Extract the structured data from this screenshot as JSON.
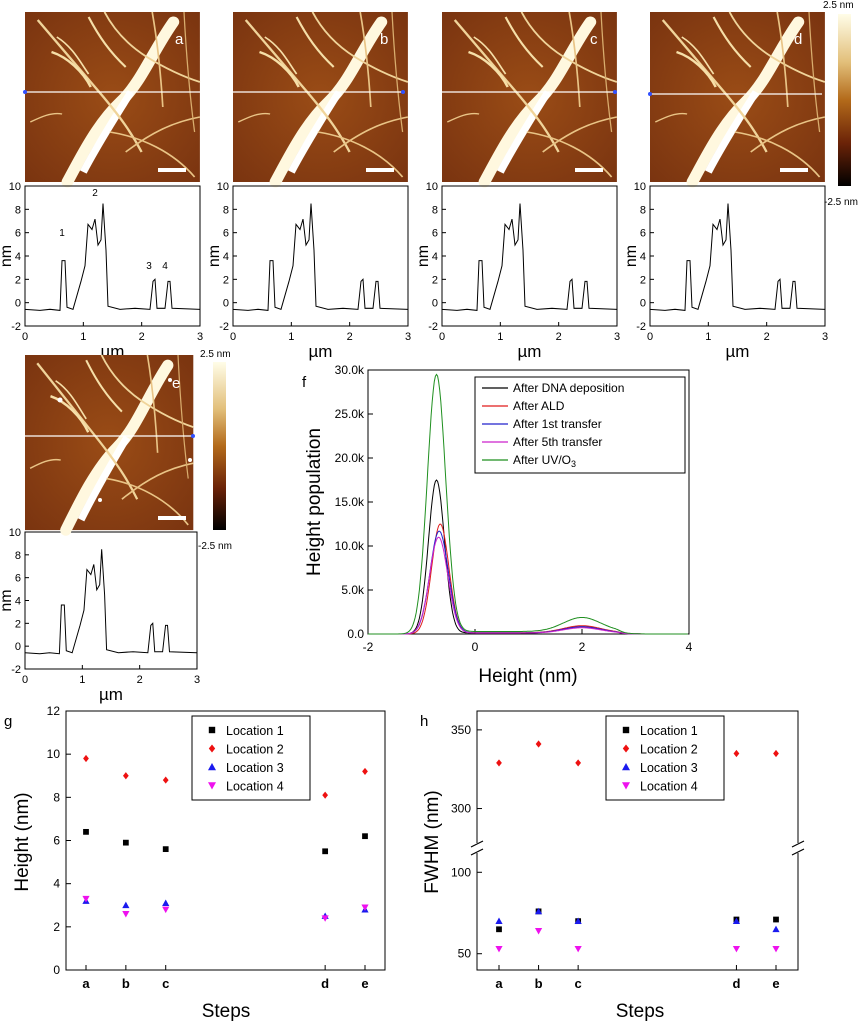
{
  "afm": {
    "panel_letters": [
      "a",
      "b",
      "c",
      "d",
      "e"
    ],
    "colorbar_top": "2.5 nm",
    "colorbar_bottom": "-2.5 nm",
    "colorbar_colors": [
      "#fffde8",
      "#e2bf7a",
      "#b36a1a",
      "#6b2308",
      "#000000"
    ]
  },
  "profiles": {
    "ylabel": "nm",
    "xlabel": "µm",
    "yticks": [
      "10",
      "8",
      "6",
      "4",
      "2",
      "0",
      "-2"
    ],
    "xticks": [
      "0",
      "1",
      "2",
      "3"
    ],
    "peak_labels": [
      "1",
      "2",
      "3",
      "4"
    ],
    "ylim": [
      -2,
      10
    ],
    "xlim": [
      0,
      3
    ]
  },
  "histogram": {
    "letter": "f",
    "ylabel": "Height population",
    "xlabel": "Height (nm)",
    "yticks": [
      "0.0",
      "5.0k",
      "10.0k",
      "15.0k",
      "20.0k",
      "25.0k",
      "30.0k"
    ],
    "xticks": [
      "-2",
      "0",
      "2",
      "4"
    ]
  },
  "panel_g": {
    "letter": "g",
    "ylabel": "Height (nm)",
    "xlabel": "Steps",
    "yticks": [
      "0",
      "2",
      "4",
      "6",
      "8",
      "10",
      "12"
    ]
  },
  "panel_h": {
    "letter": "h",
    "ylabel": "FWHM (nm)",
    "xlabel": "Steps",
    "yticks_upper": [
      "300",
      "350"
    ],
    "yticks_lower": [
      "50",
      "100"
    ]
  },
  "chart_data": [
    {
      "type": "line",
      "panel": "f",
      "x_label": "Height (nm)",
      "y_label": "Height population",
      "xlim": [
        -2,
        4
      ],
      "ylim": [
        0,
        30000
      ],
      "legend_placement": "top-right",
      "series": [
        {
          "name": "After DNA deposition",
          "color": "#000000",
          "peak_x": -0.72,
          "peak_y": 17500,
          "sigma": 0.15,
          "shoulder_y": 700
        },
        {
          "name": "After ALD",
          "color": "#e01b1b",
          "peak_x": -0.65,
          "peak_y": 12500,
          "sigma": 0.16,
          "shoulder_y": 800
        },
        {
          "name": "After 1st transfer",
          "color": "#2222cc",
          "peak_x": -0.67,
          "peak_y": 11700,
          "sigma": 0.17,
          "shoulder_y": 700
        },
        {
          "name": "After 5th transfer",
          "color": "#cc22cc",
          "peak_x": -0.68,
          "peak_y": 11000,
          "sigma": 0.17,
          "shoulder_y": 600
        },
        {
          "name": "After UV/O",
          "name_sub": "3",
          "color": "#1f8f1f",
          "peak_x": -0.72,
          "peak_y": 29500,
          "sigma": 0.17,
          "shoulder_y": 1600
        }
      ]
    },
    {
      "type": "scatter",
      "panel": "g",
      "categories": [
        "a",
        "b",
        "c",
        "d",
        "e"
      ],
      "category_positions": [
        1,
        2,
        3,
        7,
        8
      ],
      "y_label": "Height (nm)",
      "x_label": "Steps",
      "ylim": [
        0,
        12
      ],
      "legend_placement": "top",
      "series": [
        {
          "name": "Location 1",
          "color": "#000000",
          "marker": "square",
          "values": [
            6.4,
            5.9,
            5.6,
            5.5,
            6.2
          ]
        },
        {
          "name": "Location 2",
          "color": "#ee1111",
          "marker": "diamond",
          "values": [
            9.8,
            9.0,
            8.8,
            8.1,
            9.2
          ]
        },
        {
          "name": "Location 3",
          "color": "#1a1aee",
          "marker": "triangle-up",
          "values": [
            3.2,
            3.0,
            3.1,
            2.5,
            2.8
          ]
        },
        {
          "name": "Location 4",
          "color": "#ee11ee",
          "marker": "triangle-down",
          "values": [
            3.3,
            2.6,
            2.8,
            2.4,
            2.9
          ]
        }
      ]
    },
    {
      "type": "scatter",
      "panel": "h",
      "categories": [
        "a",
        "b",
        "c",
        "d",
        "e"
      ],
      "category_positions": [
        1,
        2,
        3,
        7,
        8
      ],
      "y_label": "FWHM (nm)",
      "x_label": "Steps",
      "ylim_upper": [
        280,
        362
      ],
      "ylim_lower": [
        40,
        110
      ],
      "legend_placement": "top",
      "series": [
        {
          "name": "Location 1",
          "color": "#000000",
          "marker": "square",
          "values": [
            65,
            76,
            70,
            71,
            71
          ]
        },
        {
          "name": "Location 2",
          "color": "#ee1111",
          "marker": "diamond",
          "values": [
            329,
            341,
            329,
            335,
            335
          ]
        },
        {
          "name": "Location 3",
          "color": "#1a1aee",
          "marker": "triangle-up",
          "values": [
            70,
            76,
            70,
            70,
            65
          ]
        },
        {
          "name": "Location 4",
          "color": "#ee11ee",
          "marker": "triangle-down",
          "values": [
            53,
            64,
            53,
            53,
            53
          ]
        }
      ]
    }
  ]
}
